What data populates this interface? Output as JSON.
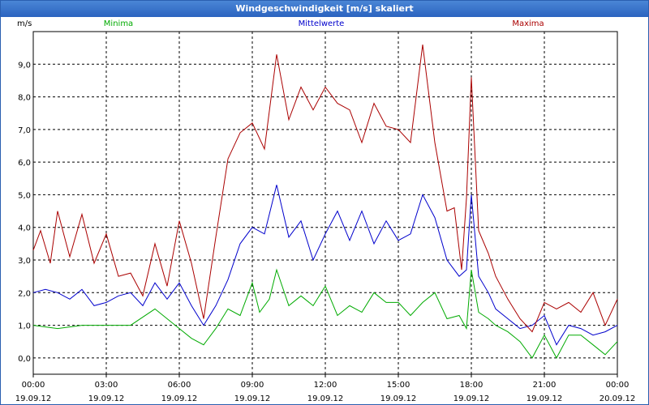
{
  "window": {
    "title": "Windgeschwindigkeit [m/s] skaliert"
  },
  "colors": {
    "minima": "#00aa00",
    "mittelwerte": "#0000cc",
    "maxima": "#aa0000",
    "grid": "#000000",
    "title_bar": "#2b63bf"
  },
  "chart_data": {
    "type": "line",
    "ylabel": "m/s",
    "ylim": [
      -0.5,
      10
    ],
    "yticks": [
      "0,0",
      "1,0",
      "2,0",
      "3,0",
      "4,0",
      "5,0",
      "6,0",
      "7,0",
      "8,0",
      "9,0"
    ],
    "xlim": [
      0,
      24
    ],
    "xticks": [
      {
        "time": "00:00",
        "date": "19.09.12"
      },
      {
        "time": "03:00",
        "date": "19.09.12"
      },
      {
        "time": "06:00",
        "date": "19.09.12"
      },
      {
        "time": "09:00",
        "date": "19.09.12"
      },
      {
        "time": "12:00",
        "date": "19.09.12"
      },
      {
        "time": "15:00",
        "date": "19.09.12"
      },
      {
        "time": "18:00",
        "date": "19.09.12"
      },
      {
        "time": "21:00",
        "date": "19.09.12"
      },
      {
        "time": "00:00",
        "date": "20.09.12"
      }
    ],
    "grid": true,
    "series": [
      {
        "name": "Minima",
        "x": [
          0,
          1,
          2,
          3,
          4,
          5,
          6,
          6.5,
          7,
          7.5,
          8,
          8.5,
          9,
          9.3,
          9.7,
          10,
          10.5,
          11,
          11.5,
          12,
          12.5,
          13,
          13.5,
          14,
          14.5,
          15,
          15.5,
          16,
          16.5,
          17,
          17.5,
          17.8,
          18,
          18.3,
          18.7,
          19,
          19.5,
          20,
          20.5,
          21,
          21.5,
          22,
          22.5,
          23,
          23.5,
          24
        ],
        "values": [
          1.0,
          0.9,
          1.0,
          1.0,
          1.0,
          1.5,
          0.9,
          0.6,
          0.4,
          0.9,
          1.5,
          1.3,
          2.3,
          1.4,
          1.8,
          2.7,
          1.6,
          1.9,
          1.6,
          2.2,
          1.3,
          1.6,
          1.4,
          2.0,
          1.7,
          1.7,
          1.3,
          1.7,
          2.0,
          1.2,
          1.3,
          0.9,
          2.7,
          1.4,
          1.2,
          1.0,
          0.8,
          0.5,
          0.0,
          0.7,
          0.0,
          0.7,
          0.7,
          0.4,
          0.1,
          0.5
        ]
      },
      {
        "name": "Mittelwerte",
        "x": [
          0,
          0.5,
          1,
          1.5,
          2,
          2.5,
          3,
          3.5,
          4,
          4.5,
          5,
          5.5,
          6,
          6.5,
          7,
          7.5,
          8,
          8.5,
          9,
          9.5,
          10,
          10.5,
          11,
          11.5,
          12,
          12.5,
          13,
          13.5,
          14,
          14.5,
          15,
          15.5,
          16,
          16.5,
          17,
          17.5,
          17.8,
          18,
          18.3,
          18.7,
          19,
          19.5,
          20,
          20.5,
          21,
          21.5,
          22,
          22.5,
          23,
          23.5,
          24
        ],
        "values": [
          2.0,
          2.1,
          2.0,
          1.8,
          2.1,
          1.6,
          1.7,
          1.9,
          2.0,
          1.6,
          2.3,
          1.8,
          2.3,
          1.6,
          1.0,
          1.6,
          2.4,
          3.5,
          4.0,
          3.8,
          5.3,
          3.7,
          4.2,
          3.0,
          3.8,
          4.5,
          3.6,
          4.5,
          3.5,
          4.2,
          3.6,
          3.8,
          5.0,
          4.3,
          3.0,
          2.5,
          2.7,
          5.0,
          2.5,
          2.0,
          1.5,
          1.2,
          0.9,
          1.0,
          1.3,
          0.4,
          1.0,
          0.9,
          0.7,
          0.8,
          1.0
        ]
      },
      {
        "name": "Maxima",
        "x": [
          0,
          0.3,
          0.7,
          1,
          1.5,
          2,
          2.5,
          3,
          3.5,
          4,
          4.5,
          5,
          5.5,
          6,
          6.5,
          7,
          7.5,
          8,
          8.5,
          9,
          9.5,
          10,
          10.5,
          11,
          11.5,
          12,
          12.5,
          13,
          13.5,
          14,
          14.5,
          15,
          15.5,
          16,
          16.5,
          17,
          17.3,
          17.6,
          17.8,
          18,
          18.3,
          18.7,
          19,
          19.5,
          20,
          20.5,
          21,
          21.5,
          22,
          22.5,
          23,
          23.5,
          24
        ],
        "values": [
          3.3,
          3.9,
          2.9,
          4.5,
          3.1,
          4.4,
          2.9,
          3.8,
          2.5,
          2.6,
          1.9,
          3.5,
          2.2,
          4.2,
          2.9,
          1.2,
          3.7,
          6.1,
          6.9,
          7.2,
          6.4,
          9.3,
          7.3,
          8.3,
          7.6,
          8.3,
          7.8,
          7.6,
          6.6,
          7.8,
          7.1,
          7.0,
          6.6,
          9.6,
          6.6,
          4.5,
          4.6,
          2.7,
          4.9,
          8.6,
          3.9,
          3.2,
          2.5,
          1.8,
          1.2,
          0.8,
          1.7,
          1.5,
          1.7,
          1.4,
          2.0,
          1.0,
          1.8
        ]
      }
    ]
  }
}
